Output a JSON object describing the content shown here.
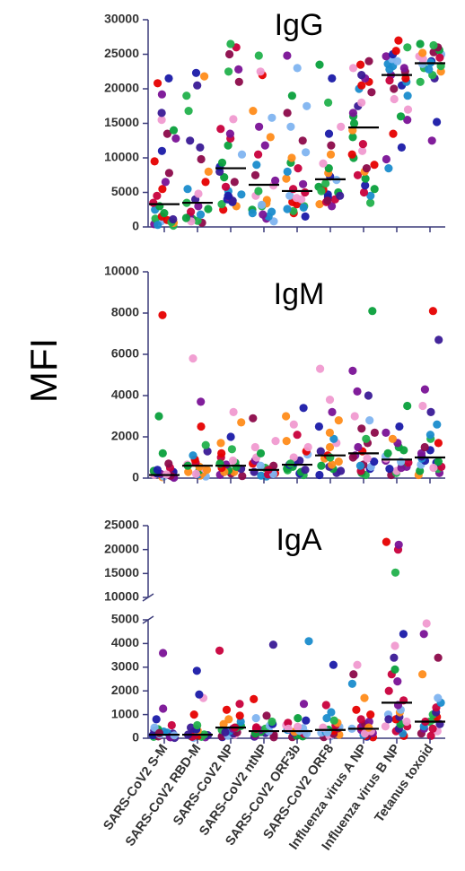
{
  "chart_data": {
    "type": "scatter",
    "ylabel": "MFI",
    "categories": [
      "SARS-CoV2 S-M",
      "SARS-CoV2 RBD-M",
      "SARS-CoV2 NP",
      "SARS-CoV2 ntNP",
      "SARS-CoV2 ORF3b",
      "SARS-CoV2 ORF8",
      "Influenza virus A NP",
      "Influenza virus B NP",
      "Tetanus toxoid"
    ],
    "point_colors": [
      "#1a1aa8",
      "#ff8c1a",
      "#e60000",
      "#0aa03c",
      "#7a1296",
      "#f09ad0",
      "#80b4f0",
      "#8c0a4a",
      "#1a8ccc",
      "#3a1a96",
      "#c8003c",
      "#22b14c"
    ],
    "panels": [
      {
        "title": "IgG",
        "yticks": [
          0,
          5000,
          10000,
          15000,
          20000,
          25000,
          30000
        ],
        "ylim": [
          0,
          30000
        ],
        "medians": [
          3300,
          3500,
          8500,
          6100,
          5200,
          6900,
          14400,
          22000,
          23700
        ],
        "points": [
          [
            200,
            400,
            600,
            800,
            1000,
            1200,
            1500,
            2000,
            2500,
            3000,
            3500,
            4500,
            5500,
            6500,
            7800,
            9500,
            11000,
            12800,
            13500,
            14000,
            15500,
            16500,
            19200,
            20800,
            21500,
            300,
            700,
            1100
          ],
          [
            600,
            900,
            1200,
            1500,
            1800,
            2200,
            2600,
            3000,
            3500,
            4000,
            4800,
            5500,
            6500,
            8000,
            9800,
            11500,
            12500,
            16800,
            19000,
            20500,
            21800,
            22300,
            800,
            1300
          ],
          [
            2500,
            3000,
            3300,
            3600,
            4000,
            4300,
            4700,
            5200,
            5800,
            6500,
            7200,
            8000,
            8700,
            9300,
            10500,
            11800,
            12800,
            13500,
            14200,
            15600,
            21000,
            22500,
            22800,
            25000,
            26000,
            26500,
            3800,
            4500
          ],
          [
            800,
            1200,
            1500,
            1800,
            2200,
            2500,
            3000,
            3400,
            3900,
            4500,
            5200,
            6000,
            6700,
            7500,
            9000,
            10500,
            11800,
            13000,
            14500,
            15800,
            16800,
            22000,
            22500,
            24800,
            2000,
            3200
          ],
          [
            1500,
            2000,
            2300,
            2600,
            3000,
            3300,
            3600,
            4000,
            4500,
            5000,
            5500,
            6200,
            7000,
            8000,
            8500,
            9300,
            10000,
            10800,
            12500,
            14500,
            16500,
            17500,
            19000,
            23000,
            24800,
            2800,
            4200
          ],
          [
            3000,
            3300,
            3600,
            4000,
            4300,
            4700,
            5000,
            5400,
            5800,
            6300,
            6800,
            7300,
            7800,
            8500,
            9200,
            10500,
            11800,
            13500,
            14500,
            18000,
            21500,
            23500,
            3800,
            4500,
            5200
          ],
          [
            3500,
            4500,
            5000,
            5500,
            6000,
            7000,
            7500,
            8000,
            8500,
            9000,
            10000,
            10500,
            11000,
            12000,
            13000,
            14000,
            15000,
            16000,
            16500,
            17500,
            18000,
            19500,
            20000,
            20500,
            21000,
            21500,
            22000,
            23000,
            23500,
            24000
          ],
          [
            8500,
            9800,
            11500,
            13500,
            15500,
            16000,
            17000,
            18500,
            19000,
            20000,
            20500,
            21000,
            21500,
            22000,
            22500,
            23000,
            23300,
            23600,
            24000,
            24300,
            24700,
            25000,
            25500,
            26000,
            27000,
            21200,
            22800
          ],
          [
            12500,
            15200,
            21000,
            21500,
            22000,
            22500,
            23000,
            23300,
            23600,
            24000,
            24300,
            24700,
            25000,
            25300,
            25600,
            26000,
            26300,
            26500,
            22800,
            23800,
            24500,
            25200
          ]
        ]
      },
      {
        "title": "IgM",
        "yticks": [
          0,
          2000,
          4000,
          6000,
          8000,
          10000
        ],
        "ylim": [
          0,
          10000
        ],
        "medians": [
          150,
          600,
          600,
          400,
          650,
          1100,
          1200,
          900,
          1000
        ],
        "points": [
          [
            20,
            50,
            80,
            100,
            130,
            160,
            200,
            230,
            260,
            300,
            350,
            400,
            500,
            700,
            1200,
            3000,
            7900,
            60,
            120,
            180
          ],
          [
            80,
            120,
            180,
            250,
            300,
            380,
            450,
            550,
            650,
            750,
            900,
            1100,
            1300,
            1600,
            2500,
            3700,
            5800,
            200,
            400,
            600
          ],
          [
            100,
            160,
            220,
            300,
            380,
            450,
            550,
            650,
            750,
            850,
            1000,
            1200,
            1400,
            1700,
            2000,
            2700,
            3200,
            300,
            500,
            700
          ],
          [
            80,
            120,
            180,
            240,
            300,
            360,
            430,
            500,
            600,
            700,
            850,
            1000,
            1200,
            1500,
            1800,
            2900,
            200,
            400,
            600
          ],
          [
            150,
            220,
            300,
            380,
            460,
            550,
            650,
            750,
            850,
            1000,
            1150,
            1300,
            1500,
            1800,
            2100,
            2600,
            3000,
            3400,
            400,
            700
          ],
          [
            150,
            250,
            350,
            450,
            550,
            650,
            800,
            950,
            1100,
            1300,
            1500,
            1700,
            1900,
            2200,
            2500,
            2800,
            3200,
            3800,
            5300,
            600,
            1000
          ],
          [
            150,
            250,
            350,
            450,
            550,
            650,
            800,
            950,
            1100,
            1300,
            1500,
            1700,
            1900,
            2200,
            2400,
            2800,
            3000,
            4000,
            4200,
            5200,
            8100,
            600,
            1000
          ],
          [
            150,
            250,
            350,
            450,
            550,
            650,
            750,
            850,
            950,
            1050,
            1200,
            1350,
            1500,
            1700,
            1900,
            2200,
            2500,
            3500,
            500,
            800
          ],
          [
            150,
            250,
            350,
            450,
            550,
            650,
            750,
            850,
            950,
            1050,
            1200,
            1350,
            1500,
            1700,
            1900,
            2100,
            2600,
            3200,
            3500,
            4300,
            6700,
            8100,
            500,
            800
          ]
        ]
      },
      {
        "title": "IgA",
        "yticks_lower": [
          0,
          1000,
          2000,
          3000,
          4000,
          5000
        ],
        "yticks_upper": [
          10000,
          15000,
          20000,
          25000
        ],
        "ylim_lower": [
          0,
          5000
        ],
        "ylim_upper": [
          10000,
          25000
        ],
        "medians": [
          150,
          150,
          450,
          300,
          300,
          350,
          400,
          1500,
          700
        ],
        "points": [
          [
            20,
            40,
            60,
            80,
            100,
            130,
            160,
            200,
            240,
            280,
            320,
            380,
            450,
            550,
            800,
            1250,
            3600,
            50,
            120,
            220
          ],
          [
            20,
            40,
            60,
            80,
            100,
            130,
            160,
            200,
            240,
            280,
            320,
            380,
            450,
            550,
            1000,
            1700,
            1850,
            2850,
            60,
            150
          ],
          [
            50,
            80,
            110,
            150,
            200,
            250,
            300,
            350,
            400,
            450,
            520,
            600,
            700,
            800,
            950,
            1200,
            1450,
            3700,
            250,
            450
          ],
          [
            40,
            70,
            100,
            140,
            180,
            220,
            260,
            300,
            350,
            400,
            460,
            530,
            600,
            700,
            850,
            950,
            1650,
            3950,
            200,
            400
          ],
          [
            50,
            80,
            110,
            150,
            190,
            230,
            270,
            310,
            360,
            420,
            480,
            550,
            650,
            750,
            850,
            1450,
            4100,
            200,
            400
          ],
          [
            50,
            80,
            110,
            150,
            190,
            230,
            270,
            310,
            360,
            420,
            480,
            550,
            650,
            750,
            850,
            1100,
            1400,
            3100,
            250,
            450
          ],
          [
            40,
            70,
            100,
            140,
            180,
            220,
            260,
            300,
            350,
            400,
            460,
            530,
            600,
            700,
            800,
            1000,
            1200,
            1700,
            2300,
            2700,
            3100,
            200,
            450
          ],
          [
            100,
            200,
            300,
            400,
            500,
            600,
            700,
            800,
            900,
            1000,
            1100,
            1200,
            1400,
            1600,
            2000,
            2400,
            2700,
            2900,
            3400,
            3900,
            4400,
            15200,
            20000,
            21000,
            21600,
            500,
            800
          ],
          [
            100,
            200,
            300,
            400,
            500,
            600,
            700,
            800,
            900,
            1000,
            1100,
            1300,
            1500,
            1700,
            2700,
            3400,
            4400,
            4850,
            400,
            700
          ]
        ]
      }
    ]
  }
}
